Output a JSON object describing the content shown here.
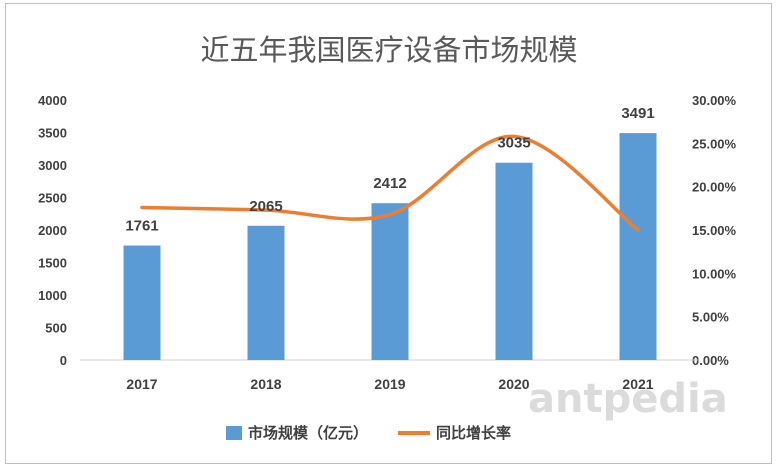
{
  "chart_data": {
    "type": "bar",
    "title": "近五年我国医疗设备市场规模",
    "categories": [
      "2017",
      "2018",
      "2019",
      "2020",
      "2021"
    ],
    "series": [
      {
        "name": "市场规模（亿元）",
        "type": "bar",
        "axis": "left",
        "values": [
          1761,
          2065,
          2412,
          3035,
          3491
        ],
        "color": "#5B9BD5"
      },
      {
        "name": "同比增长率",
        "type": "line",
        "axis": "right",
        "values": [
          17.6,
          17.3,
          16.8,
          25.8,
          15.0
        ],
        "color": "#ED7D31"
      }
    ],
    "ylim": [
      0,
      4000
    ],
    "yticks": [
      "0",
      "500",
      "1000",
      "1500",
      "2000",
      "2500",
      "3000",
      "3500",
      "4000"
    ],
    "y2lim": [
      0,
      30
    ],
    "y2ticks": [
      "0.00%",
      "5.00%",
      "10.00%",
      "15.00%",
      "20.00%",
      "25.00%",
      "30.00%"
    ],
    "data_labels": [
      "1761",
      "2065",
      "2412",
      "3035",
      "3491"
    ],
    "grid": false,
    "legend_position": "bottom"
  },
  "watermark": "antpedia"
}
